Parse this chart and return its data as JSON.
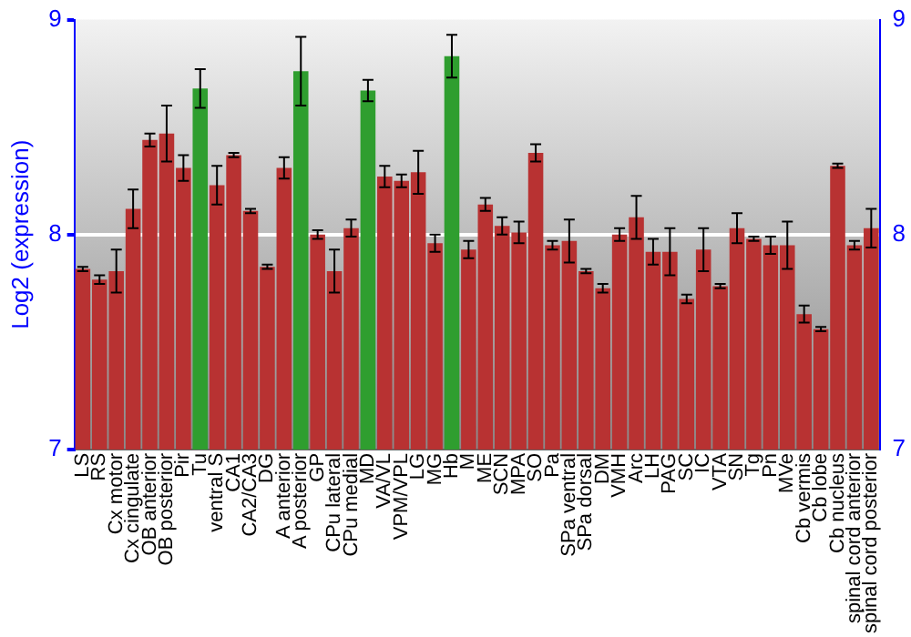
{
  "chart_data": {
    "type": "bar",
    "ylabel": "Log2 (expression)",
    "categories": [
      "LS",
      "RS",
      "Cx motor",
      "Cx cingulate",
      "OB anterior",
      "OB posterior",
      "Pir",
      "Tu",
      "ventral S",
      "CA1",
      "CA2/CA3",
      "DG",
      "A anterior",
      "A posterior",
      "GP",
      "CPu lateral",
      "CPu medial",
      "MD",
      "VA/VL",
      "VPM/VPL",
      "LG",
      "MG",
      "Hb",
      "M",
      "ME",
      "SCN",
      "MPA",
      "SO",
      "Pa",
      "SPa ventral",
      "SPa dorsal",
      "DM",
      "VMH",
      "Arc",
      "LH",
      "PAG",
      "SC",
      "IC",
      "VTA",
      "SN",
      "Tg",
      "Pn",
      "MVe",
      "Cb vermis",
      "Cb lobe",
      "Cb nucleus",
      "spinal cord anterior",
      "spinal cord posterior"
    ],
    "values": [
      7.84,
      7.79,
      7.83,
      8.12,
      8.44,
      8.47,
      8.31,
      8.68,
      8.23,
      8.37,
      8.11,
      7.85,
      8.31,
      8.76,
      8.0,
      7.83,
      8.03,
      8.67,
      8.27,
      8.25,
      8.29,
      7.96,
      8.83,
      7.93,
      8.14,
      8.04,
      8.01,
      8.38,
      7.95,
      7.97,
      7.83,
      7.75,
      8.0,
      8.08,
      7.92,
      7.92,
      7.7,
      7.93,
      7.76,
      8.03,
      7.98,
      7.95,
      7.95,
      7.63,
      7.56,
      8.32,
      7.95,
      8.03
    ],
    "errors": [
      0.01,
      0.02,
      0.1,
      0.09,
      0.03,
      0.13,
      0.06,
      0.09,
      0.09,
      0.01,
      0.01,
      0.01,
      0.05,
      0.16,
      0.02,
      0.1,
      0.04,
      0.05,
      0.05,
      0.03,
      0.1,
      0.04,
      0.1,
      0.04,
      0.03,
      0.04,
      0.05,
      0.04,
      0.02,
      0.1,
      0.01,
      0.02,
      0.03,
      0.1,
      0.06,
      0.11,
      0.02,
      0.1,
      0.01,
      0.07,
      0.01,
      0.04,
      0.11,
      0.04,
      0.01,
      0.01,
      0.02,
      0.09
    ],
    "colors": [
      "#b83232",
      "#b83232",
      "#b83232",
      "#b83232",
      "#b83232",
      "#b83232",
      "#b83232",
      "#2f9e2f",
      "#b83232",
      "#b83232",
      "#b83232",
      "#b83232",
      "#b83232",
      "#2f9e2f",
      "#b83232",
      "#b83232",
      "#b83232",
      "#2f9e2f",
      "#b83232",
      "#b83232",
      "#b83232",
      "#b83232",
      "#2f9e2f",
      "#b83232",
      "#b83232",
      "#b83232",
      "#b83232",
      "#b83232",
      "#b83232",
      "#b83232",
      "#b83232",
      "#b83232",
      "#b83232",
      "#b83232",
      "#b83232",
      "#b83232",
      "#b83232",
      "#b83232",
      "#b83232",
      "#b83232",
      "#b83232",
      "#b83232",
      "#b83232",
      "#b83232",
      "#b83232",
      "#b83232",
      "#b83232",
      "#b83232"
    ],
    "ylim": [
      7,
      9
    ],
    "yticks": [
      7,
      8,
      9
    ],
    "y2lim": [
      7,
      9
    ],
    "y2ticks": [
      7,
      8,
      9
    ],
    "grid": "y"
  }
}
